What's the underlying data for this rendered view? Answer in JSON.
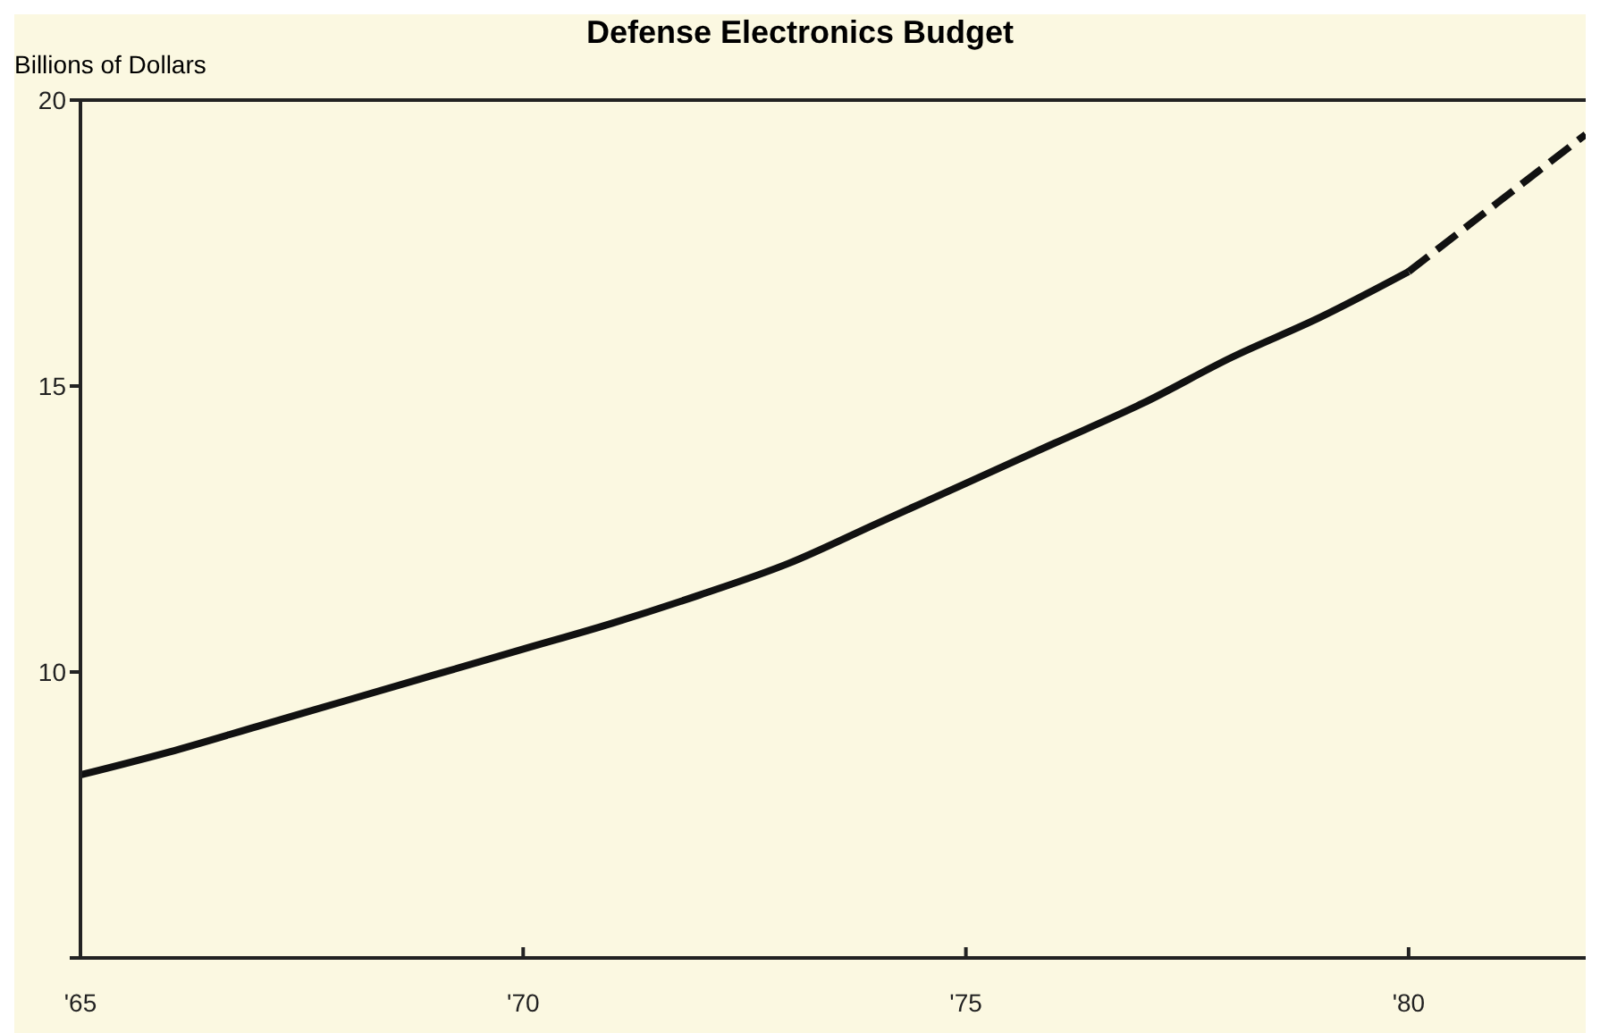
{
  "chart_data": {
    "type": "line",
    "title": "Defense Electronics Budget",
    "ylabel": "Billions of Dollars",
    "xlim": [
      1965,
      1982
    ],
    "xticks": [
      {
        "value": 1965,
        "label": "'65"
      },
      {
        "value": 1970,
        "label": "'70"
      },
      {
        "value": 1975,
        "label": "'75"
      },
      {
        "value": 1980,
        "label": "'80"
      }
    ],
    "ylim": [
      5,
      20
    ],
    "yticks": [
      {
        "value": 5,
        "label": null
      },
      10,
      15,
      20
    ],
    "grid": false,
    "legend": false,
    "marker": "none",
    "series": [
      {
        "color": "#111111",
        "line_style": "solid",
        "x": [
          1965,
          1966,
          1967,
          1968,
          1969,
          1970,
          1971,
          1972,
          1973,
          1974,
          1975,
          1976,
          1977,
          1978,
          1979,
          1980
        ],
        "values": [
          8.2,
          8.6,
          9.05,
          9.5,
          9.95,
          10.4,
          10.85,
          11.35,
          11.9,
          12.6,
          13.3,
          14.0,
          14.7,
          15.5,
          16.2,
          17.0
        ]
      },
      {
        "color": "#111111",
        "line_style": "dashed",
        "x": [
          1980,
          1981,
          1982
        ],
        "values": [
          17.0,
          18.2,
          19.4
        ]
      }
    ]
  }
}
